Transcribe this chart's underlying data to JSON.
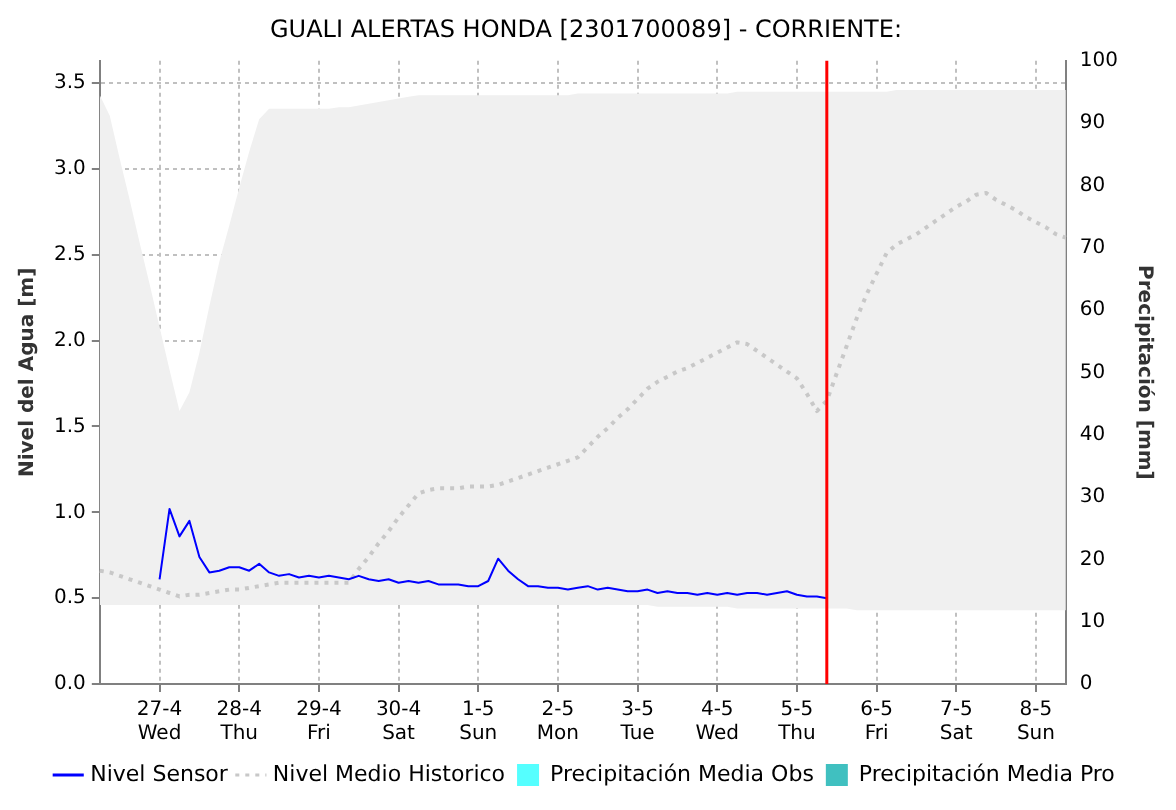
{
  "chart_data": {
    "type": "line",
    "title": "GUALI ALERTAS HONDA [2301700089] - CORRIENTE:",
    "ylabel": "Nivel del Agua [m]",
    "y2label": "Precipitación [mm]",
    "categories": [
      null,
      null,
      null,
      null,
      null,
      null,
      "27-4\nWed",
      null,
      null,
      null,
      null,
      null,
      null,
      null,
      "28-4\nThu",
      null,
      null,
      null,
      null,
      null,
      null,
      null,
      "29-4\nFri",
      null,
      null,
      null,
      null,
      null,
      null,
      null,
      "30-4\nSat",
      null,
      null,
      null,
      null,
      null,
      null,
      null,
      "1-5\nSun",
      null,
      null,
      null,
      null,
      null,
      null,
      null,
      "2-5\nMon",
      null,
      null,
      null,
      null,
      null,
      null,
      null,
      "3-5\nTue",
      null,
      null,
      null,
      null,
      null,
      null,
      null,
      "4-5\nWed",
      null,
      null,
      null,
      null,
      null,
      null,
      null,
      "5-5\nThu",
      null,
      null,
      null,
      null,
      null,
      null,
      null,
      "6-5\nFri",
      null,
      null,
      null,
      null,
      null,
      null,
      null,
      "7-5\nSat",
      null,
      null,
      null,
      null,
      null,
      null,
      null,
      "8-5\nSun",
      null,
      null,
      null
    ],
    "ylim": [
      0,
      3.63
    ],
    "yticks": [
      {
        "value": 0,
        "label": "0.0"
      },
      {
        "value": 0.5,
        "label": "0.5"
      },
      {
        "value": 1,
        "label": "1.0"
      },
      {
        "value": 1.5,
        "label": "1.5"
      },
      {
        "value": 2,
        "label": "2.0"
      },
      {
        "value": 2.5,
        "label": "2.5"
      },
      {
        "value": 3,
        "label": "3.0"
      },
      {
        "value": 3.5,
        "label": "3.5"
      }
    ],
    "y2lim": [
      0,
      100
    ],
    "y2ticks": [
      0,
      10,
      20,
      30,
      40,
      50,
      60,
      70,
      80,
      90,
      100
    ],
    "grid": true,
    "legend": "bottom",
    "marker": "none",
    "series": [
      {
        "name": "Nivel Sensor",
        "color": "#0000ff",
        "line_style": "solid",
        "values": [
          null,
          null,
          null,
          null,
          null,
          null,
          0.61,
          1.02,
          0.86,
          0.95,
          0.74,
          0.65,
          0.66,
          0.68,
          0.68,
          0.66,
          0.7,
          0.65,
          0.63,
          0.64,
          0.62,
          0.63,
          0.62,
          0.63,
          0.62,
          0.61,
          0.63,
          0.61,
          0.6,
          0.61,
          0.59,
          0.6,
          0.59,
          0.6,
          0.58,
          0.58,
          0.58,
          0.57,
          0.57,
          0.6,
          0.73,
          0.66,
          0.61,
          0.57,
          0.57,
          0.56,
          0.56,
          0.55,
          0.56,
          0.57,
          0.55,
          0.56,
          0.55,
          0.54,
          0.54,
          0.55,
          0.53,
          0.54,
          0.53,
          0.53,
          0.52,
          0.53,
          0.52,
          0.53,
          0.52,
          0.53,
          0.53,
          0.52,
          0.53,
          0.54,
          0.52,
          0.51,
          0.51,
          0.5,
          null,
          null,
          null,
          null,
          null,
          null,
          null,
          null,
          null,
          null,
          null,
          null,
          null,
          null,
          null,
          null,
          null,
          null,
          null,
          null,
          null,
          null,
          null,
          null
        ]
      },
      {
        "name": "Nivel Medio Historico",
        "color": "#c8c8c8",
        "line_style": "dotted",
        "values": [
          0.66,
          0.65,
          0.63,
          0.61,
          0.59,
          0.57,
          0.55,
          0.53,
          0.51,
          0.52,
          0.52,
          0.53,
          0.54,
          0.55,
          0.55,
          0.56,
          0.57,
          0.58,
          0.59,
          0.59,
          0.59,
          0.59,
          0.59,
          0.59,
          0.59,
          0.59,
          0.67,
          0.74,
          0.82,
          0.89,
          0.97,
          1.04,
          1.11,
          1.13,
          1.14,
          1.14,
          1.14,
          1.15,
          1.15,
          1.15,
          1.16,
          1.18,
          1.2,
          1.22,
          1.24,
          1.26,
          1.28,
          1.3,
          1.32,
          1.38,
          1.44,
          1.49,
          1.55,
          1.6,
          1.66,
          1.72,
          1.76,
          1.79,
          1.82,
          1.84,
          1.87,
          1.9,
          1.93,
          1.96,
          1.99,
          1.98,
          1.94,
          1.9,
          1.86,
          1.82,
          1.78,
          1.69,
          1.59,
          1.65,
          1.81,
          1.97,
          2.13,
          2.27,
          2.39,
          2.51,
          2.56,
          2.59,
          2.62,
          2.66,
          2.7,
          2.74,
          2.78,
          2.81,
          2.85,
          2.86,
          2.82,
          2.79,
          2.76,
          2.72,
          2.69,
          2.66,
          2.62,
          2.6
        ],
        "lower": [
          0.46,
          0.46,
          0.46,
          0.46,
          0.46,
          0.46,
          0.46,
          0.46,
          0.46,
          0.46,
          0.46,
          0.46,
          0.46,
          0.46,
          0.46,
          0.46,
          0.46,
          0.46,
          0.46,
          0.46,
          0.46,
          0.46,
          0.46,
          0.46,
          0.46,
          0.46,
          0.46,
          0.46,
          0.46,
          0.46,
          0.46,
          0.46,
          0.46,
          0.46,
          0.46,
          0.46,
          0.46,
          0.46,
          0.46,
          0.46,
          0.46,
          0.46,
          0.46,
          0.46,
          0.46,
          0.46,
          0.46,
          0.46,
          0.46,
          0.46,
          0.46,
          0.46,
          0.46,
          0.46,
          0.46,
          0.46,
          0.45,
          0.45,
          0.45,
          0.45,
          0.45,
          0.45,
          0.45,
          0.45,
          0.44,
          0.44,
          0.44,
          0.44,
          0.44,
          0.44,
          0.44,
          0.44,
          0.44,
          0.44,
          0.44,
          0.44,
          0.43,
          0.43,
          0.43,
          0.43,
          0.43,
          0.43,
          0.43,
          0.43,
          0.43,
          0.43,
          0.43,
          0.43,
          0.43,
          0.43,
          0.43,
          0.43,
          0.43,
          0.43,
          0.43,
          0.43,
          0.43,
          0.43
        ],
        "upper": [
          3.43,
          3.31,
          3.06,
          2.82,
          2.57,
          2.33,
          2.08,
          1.83,
          1.59,
          1.7,
          1.93,
          2.2,
          2.46,
          2.67,
          2.89,
          3.1,
          3.29,
          3.35,
          3.35,
          3.35,
          3.35,
          3.35,
          3.35,
          3.35,
          3.36,
          3.36,
          3.37,
          3.38,
          3.39,
          3.4,
          3.41,
          3.42,
          3.43,
          3.43,
          3.43,
          3.43,
          3.43,
          3.43,
          3.43,
          3.43,
          3.43,
          3.43,
          3.43,
          3.43,
          3.43,
          3.43,
          3.43,
          3.43,
          3.44,
          3.44,
          3.44,
          3.44,
          3.44,
          3.44,
          3.44,
          3.44,
          3.44,
          3.44,
          3.44,
          3.44,
          3.44,
          3.44,
          3.44,
          3.44,
          3.45,
          3.45,
          3.45,
          3.45,
          3.45,
          3.45,
          3.45,
          3.45,
          3.45,
          3.45,
          3.45,
          3.45,
          3.45,
          3.45,
          3.45,
          3.45,
          3.46,
          3.46,
          3.46,
          3.46,
          3.46,
          3.46,
          3.46,
          3.46,
          3.46,
          3.46,
          3.46,
          3.46,
          3.46,
          3.46,
          3.46,
          3.46,
          3.46,
          3.46
        ]
      },
      {
        "name": "Precipitación Media Obs",
        "type": "bar",
        "color": "#55ffff",
        "values": [
          null,
          null,
          null,
          null,
          null,
          null,
          null,
          null,
          null,
          null,
          null,
          null,
          null,
          null,
          null,
          null,
          null,
          null,
          null,
          null,
          null,
          null,
          null,
          null,
          null,
          null,
          null,
          null,
          null,
          null,
          null,
          null,
          null,
          null,
          null,
          null,
          null,
          null,
          null,
          null,
          null,
          null,
          null,
          null,
          null,
          null,
          null,
          null,
          null,
          null,
          null,
          null,
          null,
          null,
          null,
          null,
          null,
          null,
          null,
          null,
          null,
          null,
          null,
          null,
          null,
          null,
          null,
          null,
          null,
          null,
          null,
          null,
          null,
          null,
          null,
          null,
          null,
          null,
          null,
          null,
          null,
          null,
          null,
          null,
          null,
          null,
          null,
          null,
          null,
          null,
          null,
          null,
          null,
          null,
          null,
          null,
          null,
          null
        ]
      },
      {
        "name": "Precipitación Media Pro",
        "type": "bar",
        "color": "#40c0c0",
        "values": [
          null,
          null,
          null,
          null,
          null,
          null,
          null,
          null,
          null,
          null,
          null,
          null,
          null,
          null,
          null,
          null,
          null,
          null,
          null,
          null,
          null,
          null,
          null,
          null,
          null,
          null,
          null,
          null,
          null,
          null,
          null,
          null,
          null,
          null,
          null,
          null,
          null,
          null,
          null,
          null,
          null,
          null,
          null,
          null,
          null,
          null,
          null,
          null,
          null,
          null,
          null,
          null,
          null,
          null,
          null,
          null,
          null,
          null,
          null,
          null,
          null,
          null,
          null,
          null,
          null,
          null,
          null,
          null,
          null,
          null,
          null,
          null,
          null,
          null,
          null,
          null,
          null,
          null,
          null,
          null,
          null,
          null,
          null,
          null,
          null,
          null,
          null,
          null,
          null,
          null,
          null,
          null,
          null,
          null,
          null,
          null,
          null,
          null
        ]
      }
    ]
  }
}
